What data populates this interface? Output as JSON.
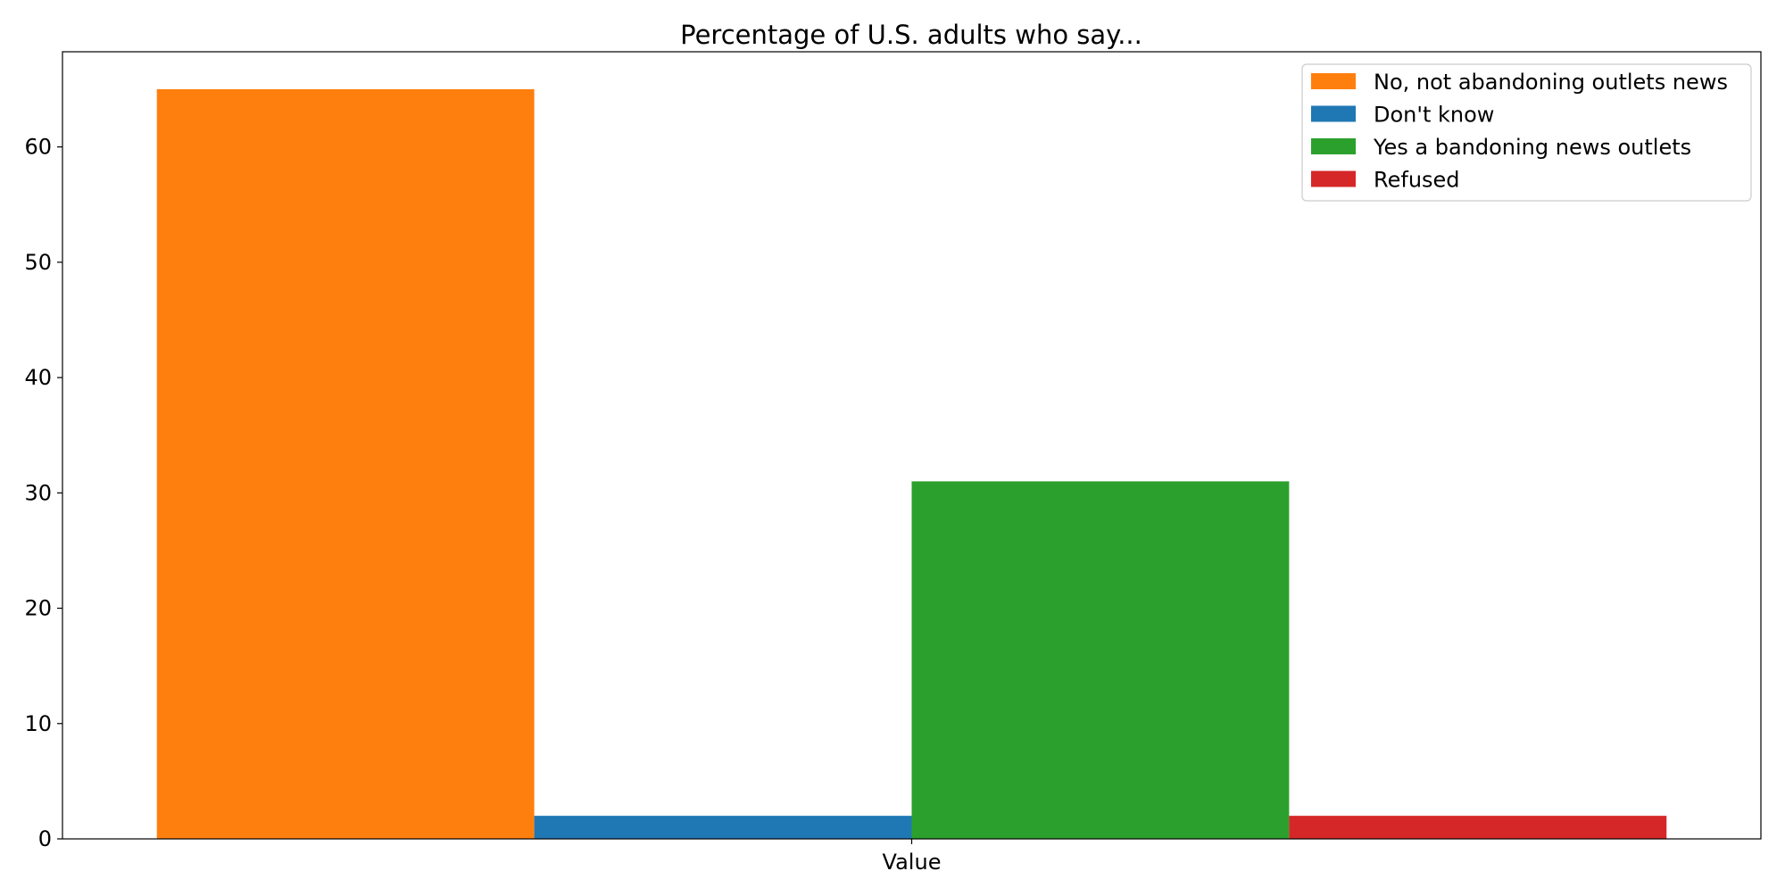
{
  "chart_data": {
    "type": "bar",
    "title": "Percentage of U.S. adults who say...",
    "categories": [
      "Value"
    ],
    "series": [
      {
        "name": "No, not abandoning outlets news",
        "values": [
          65
        ],
        "color": "#ff7f0e"
      },
      {
        "name": "Don't know",
        "values": [
          2
        ],
        "color": "#1f77b4"
      },
      {
        "name": "Yes a bandoning news outlets",
        "values": [
          31
        ],
        "color": "#2ca02c"
      },
      {
        "name": "Refused",
        "values": [
          2
        ],
        "color": "#d62728"
      }
    ],
    "xlabel": "",
    "ylabel": "",
    "ylim": [
      0,
      68.25
    ],
    "yticks": [
      0,
      10,
      20,
      30,
      40,
      50,
      60
    ],
    "grid": false,
    "legend_position": "top-right"
  }
}
